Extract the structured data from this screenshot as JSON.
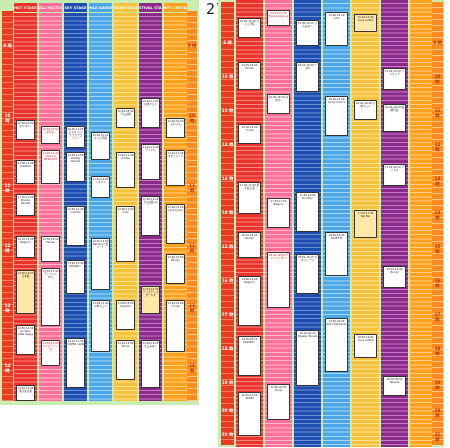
{
  "day_label": "27",
  "colors": {
    "panel": "#c9ecb0",
    "time_left": "#e83b1f",
    "time_right": "#ff8a1d",
    "stages": [
      "#e8342a",
      "#ff6f9a",
      "#1e4fb0",
      "#4aa8e8",
      "#f6c23a",
      "#8c2a8c",
      "#ffa11a"
    ]
  },
  "stages": [
    {
      "name": "HOT STAGE"
    },
    {
      "name": "DOLL FACTORY"
    },
    {
      "name": "SKY STAGE"
    },
    {
      "name": "SMILE GARDEN"
    },
    {
      "name": "DREAM STAGE"
    },
    {
      "name": "FESTIVAL STAGE"
    },
    {
      "name": "INFO CENTRE"
    }
  ],
  "left": {
    "hours": [
      "9 時",
      "10 時",
      "11 時",
      "12 時",
      "13 時",
      "14 時"
    ],
    "right_hours": [
      "9 時",
      "10 時",
      "11 時",
      "12 時",
      "13 時",
      "14 時"
    ]
  },
  "right": {
    "hours": [
      "9 時",
      "10 時",
      "11 時",
      "12 時",
      "13 時",
      "14 時",
      "15 時",
      "16 時",
      "17 時",
      "18 時",
      "19 時",
      "20 時",
      "21 時"
    ],
    "right_hours": [
      "9 時",
      "10 時",
      "11 時",
      "12 時",
      "13 時",
      "14 時",
      "15 時",
      "16 時",
      "17 時",
      "18 時",
      "19 時",
      "20 時",
      "21 時"
    ]
  },
  "slots_left": [
    {
      "t": "10:30-10:50 マジカル☆"
    },
    {
      "t": "11:00-11:20 Creative"
    },
    {
      "t": "11:30-11:50 Cheeky Parade"
    },
    {
      "t": "12:10-12:30 Negicco"
    },
    {
      "t": "13:00-13:20 乃木坂"
    },
    {
      "t": "13:50-14:10 Dorothy Little Happy"
    },
    {
      "t": "14:35-14:55 東京女子流"
    },
    {
      "t": "10:30-10:50 ぱすぽ☆"
    },
    {
      "t": "11:20-11:40 Tokyo 3 MEN LOST"
    },
    {
      "t": "12:30-12:50 Fairies"
    },
    {
      "t": "13:10-13:30 アイドリング!!!"
    },
    {
      "t": "14:00-14:20 ベイビーレイズ"
    },
    {
      "t": "10:45-11:05 チャオ ベッラ チンクエッティ"
    },
    {
      "t": "11:30-11:50 Cheeky Parade"
    },
    {
      "t": "12:20-12:40 Colorful"
    },
    {
      "t": "13:20-13:40 PASSPO☆"
    },
    {
      "t": "14:10-14:30 SUPER☆GiRLS"
    },
    {
      "t": "10:50-11:10 さくら学院"
    },
    {
      "t": "11:40-12:00 トマパイ"
    },
    {
      "t": "12:30-12:50 Bellring少女ハート"
    },
    {
      "t": "13:20-13:40 ひめキュン"
    },
    {
      "t": "10:20-10:40 でんぱ組"
    },
    {
      "t": "11:10-11:30 predia"
    },
    {
      "t": "12:00-12:20 LinQ"
    },
    {
      "t": "13:00-13:20 Cupitron"
    },
    {
      "t": "13:40-14:00 9nine"
    },
    {
      "t": "10:40-11:00 ひめキュン"
    },
    {
      "t": "11:20-11:40 アイドル"
    },
    {
      "t": "12:00-12:20 でんぱ組.inc"
    },
    {
      "t": "13:10-13:30 アップアップガールズ"
    },
    {
      "t": "14:00-14:20 さんみゅ〜"
    },
    {
      "t": "10:30-10:50 ももいろ"
    },
    {
      "t": "11:10-11:30 スマイレージ"
    },
    {
      "t": "12:00-12:20 Juice=Juice"
    },
    {
      "t": "12:40-13:00 Berryz"
    },
    {
      "t": "13:40-14:00 ℃-ute"
    }
  ],
  "slots_right": [
    {
      "t": "15:00-15:20 さくら学院"
    },
    {
      "t": "15:40-16:00 Fairies"
    },
    {
      "t": "16:30-16:50 ℃-ute"
    },
    {
      "t": "17:20-17:40 東京女子流"
    },
    {
      "t": "18:10-18:30 Berryz"
    },
    {
      "t": "19:00-19:20 Negicco"
    },
    {
      "t": "19:50-20:10 PASSPO☆"
    },
    {
      "t": "20:40-21:00 SKE48"
    },
    {
      "t": "15:10-15:30 Fresh Girls Live"
    },
    {
      "t": "16:00-16:20 ぱすぽ☆"
    },
    {
      "t": "17:30-17:50 Negicco"
    },
    {
      "t": "18:40-19:00 アイドリング!!!"
    },
    {
      "t": "20:00-20:20 9nine"
    },
    {
      "t": "15:00-15:20 さんみゅ〜"
    },
    {
      "t": "16:10-16:30 ミスiD"
    },
    {
      "t": "17:40-18:00 Dorothy"
    },
    {
      "t": "18:50-19:10 スマイレージ"
    },
    {
      "t": "20:10-20:30 Cheeky Parade"
    },
    {
      "t": "15:00-15:20 LinQ"
    },
    {
      "t": "16:40-17:00 Lucky Color's"
    },
    {
      "t": "18:20-18:40 GALETTe"
    },
    {
      "t": "19:40-20:00 Doll☆Elements"
    },
    {
      "t": "15:20-15:40 Love La Bell"
    },
    {
      "t": "16:20-16:40 ひめキュン"
    },
    {
      "t": "17:20-17:40 Bel Bel"
    },
    {
      "t": "18:40-19:00 Love La Bell"
    },
    {
      "t": "15:00-15:20 ミニライブ"
    },
    {
      "t": "16:30-16:50 最終公演"
    },
    {
      "t": "17:50-18:10 アイドル"
    },
    {
      "t": "19:10-19:30 Berryz"
    },
    {
      "t": "20:30-20:50 Special"
    }
  ]
}
